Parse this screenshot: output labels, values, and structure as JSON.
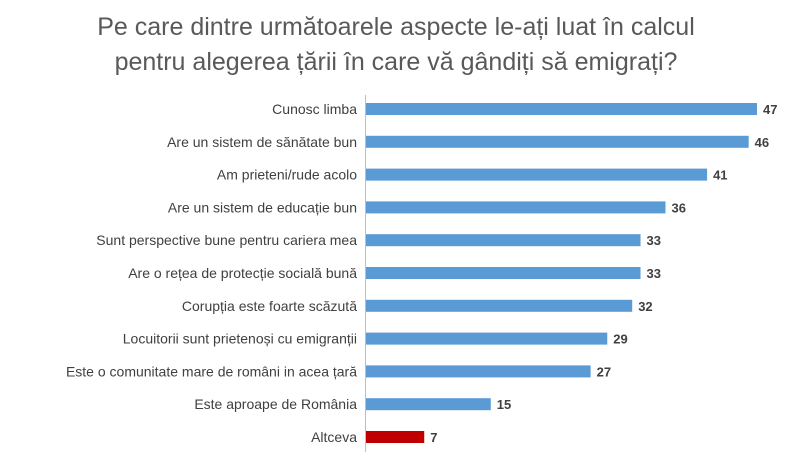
{
  "chart_data": {
    "type": "bar",
    "orientation": "horizontal",
    "title_lines": [
      "Pe care dintre următoarele aspecte le-ați luat în calcul",
      "pentru alegerea țării în care vă gândiți să emigrați?"
    ],
    "categories": [
      "Cunosc limba",
      "Are un sistem de sănătate bun",
      "Am prieteni/rude acolo",
      "Are un sistem de educație bun",
      "Sunt perspective bune pentru cariera mea",
      "Are o rețea de protecție socială bună",
      "Corupția este foarte scăzută",
      "Locuitorii sunt prietenoși cu emigranții",
      "Este o comunitate mare de români in acea țară",
      "Este aproape de România",
      "Altceva"
    ],
    "values": [
      47,
      46,
      41,
      36,
      33,
      33,
      32,
      29,
      27,
      15,
      7
    ],
    "xlim": [
      0,
      47
    ],
    "grid": false,
    "data_labels": true,
    "colors": {
      "default_bar": "#5b9bd5",
      "highlight_bar": "#c00000",
      "highlight_category": "Altceva",
      "label_text": "#404040",
      "title_text": "#595959",
      "axis_line": "#bfbfbf"
    }
  }
}
